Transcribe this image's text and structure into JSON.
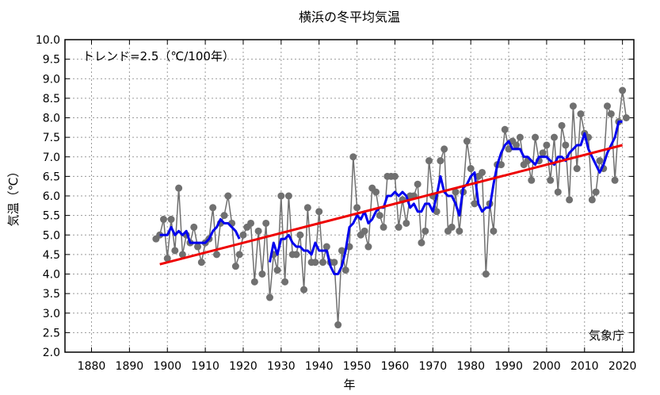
{
  "chart_data": {
    "type": "line",
    "title": "横浜の冬平均気温",
    "xlabel": "年",
    "ylabel": "気温（℃）",
    "xlim": [
      1873,
      2023
    ],
    "ylim": [
      2.0,
      10.0
    ],
    "xticks": [
      "1880",
      "1890",
      "1900",
      "1910",
      "1920",
      "1930",
      "1940",
      "1950",
      "1960",
      "1970",
      "1980",
      "1990",
      "2000",
      "2010",
      "2020"
    ],
    "yticks": [
      "2.0",
      "2.5",
      "3.0",
      "3.5",
      "4.0",
      "4.5",
      "5.0",
      "5.5",
      "6.0",
      "6.5",
      "7.0",
      "7.5",
      "8.0",
      "8.5",
      "9.0",
      "9.5",
      "10.0"
    ],
    "grid": true,
    "trend_text": "トレンド=2.5（℃/100年）",
    "source": "気象庁",
    "colors": {
      "annual": "#707070",
      "moving_average": "#0000ee",
      "trend": "#ee0000"
    },
    "series": [
      {
        "x": [
          1897,
          1898,
          1899,
          1900,
          1901,
          1902,
          1903,
          1904,
          1905,
          1906,
          1907,
          1908,
          1909,
          1910,
          1911,
          1912,
          1913,
          1914,
          1915,
          1916,
          1917,
          1918,
          1919,
          1920,
          1921,
          1922,
          1923,
          1924,
          1925,
          1926,
          1927,
          1928,
          1929,
          1930,
          1931,
          1932,
          1933,
          1934,
          1935,
          1936,
          1937,
          1938,
          1939,
          1940,
          1941,
          1942,
          1943,
          1944,
          1945,
          1946,
          1947,
          1948,
          1949,
          1950,
          1951,
          1952,
          1953,
          1954,
          1955,
          1956,
          1957,
          1958,
          1959,
          1960,
          1961,
          1962,
          1963,
          1964,
          1965,
          1966,
          1967,
          1968,
          1969,
          1970,
          1971,
          1972,
          1973,
          1974,
          1975,
          1976,
          1977,
          1978,
          1979,
          1980,
          1981,
          1982,
          1983,
          1984,
          1985,
          1986,
          1987,
          1988,
          1989,
          1990,
          1991,
          1992,
          1993,
          1994,
          1995,
          1996,
          1997,
          1998,
          1999,
          2000,
          2001,
          2002,
          2003,
          2004,
          2005,
          2006,
          2007,
          2008,
          2009,
          2010,
          2011,
          2012,
          2013,
          2014,
          2015,
          2016,
          2017,
          2018,
          2019,
          2020,
          2021
        ],
        "values": [
          4.9,
          5.0,
          5.4,
          4.4,
          5.4,
          4.6,
          6.2,
          4.5,
          5.0,
          4.8,
          5.2,
          4.7,
          4.3,
          4.8,
          4.9,
          5.7,
          4.5,
          5.3,
          5.5,
          6.0,
          5.3,
          4.2,
          4.5,
          5.0,
          5.2,
          5.3,
          3.8,
          5.1,
          4.0,
          5.3,
          3.4,
          4.5,
          4.1,
          6.0,
          3.8,
          6.0,
          4.5,
          4.5,
          5.0,
          3.6,
          5.7,
          4.3,
          4.3,
          5.6,
          4.3,
          4.7,
          4.3,
          4.3,
          2.7,
          4.6,
          4.1,
          4.7,
          7.0,
          5.7,
          5.0,
          5.1,
          4.7,
          6.2,
          6.1,
          5.5,
          5.2,
          6.5,
          6.5,
          6.5,
          5.2,
          5.9,
          5.3,
          6.0,
          6.0,
          6.3,
          4.8,
          5.1,
          6.9,
          6.0,
          5.6,
          6.9,
          7.2,
          5.1,
          5.2,
          6.1,
          5.1,
          6.1,
          7.4,
          6.7,
          5.8,
          6.5,
          6.6,
          4.0,
          5.8,
          5.1,
          6.8,
          6.8,
          7.7,
          7.2,
          7.4,
          7.3,
          7.5,
          6.8,
          6.9,
          6.4,
          7.5,
          6.9,
          7.1,
          7.3,
          6.4,
          7.5,
          6.1,
          7.8,
          7.3,
          5.9,
          8.3,
          6.7,
          8.1,
          7.6,
          7.5,
          5.9,
          6.1,
          6.9,
          6.7,
          8.3,
          8.1,
          6.4,
          7.9,
          8.7,
          8.0
        ]
      },
      {
        "x": [
          1898,
          1899,
          1900,
          1901,
          1902,
          1903,
          1904,
          1905,
          1906,
          1907,
          1908,
          1909,
          1910,
          1911,
          1912,
          1913,
          1914,
          1915,
          1916,
          1917,
          1918,
          1919,
          null,
          1927,
          1928,
          1929,
          1930,
          1931,
          1932,
          1933,
          1934,
          1935,
          1936,
          1937,
          1938,
          1939,
          1940,
          1941,
          1942,
          1943,
          1944,
          1945,
          1946,
          1947,
          1948,
          1949,
          1950,
          1951,
          1952,
          1953,
          1954,
          1955,
          1956,
          1957,
          1958,
          1959,
          1960,
          1961,
          1962,
          1963,
          1964,
          1965,
          1966,
          1967,
          1968,
          1969,
          1970,
          1971,
          1972,
          1973,
          1974,
          1975,
          1976,
          1977,
          1978,
          1979,
          1980,
          1981,
          1982,
          1983,
          1984,
          1985,
          1986,
          1987,
          1988,
          1989,
          1990,
          1991,
          1992,
          1993,
          1994,
          1995,
          1996,
          1997,
          1998,
          1999,
          2000,
          2001,
          2002,
          2003,
          2004,
          2005,
          2006,
          2007,
          2008,
          2009,
          2010,
          2011,
          2012,
          2013,
          2014,
          2015,
          2016,
          2017,
          2018,
          2019,
          2020
        ],
        "values": [
          5.0,
          5.0,
          5.0,
          5.2,
          5.0,
          5.1,
          5.0,
          5.1,
          4.8,
          4.8,
          4.8,
          4.8,
          4.8,
          4.9,
          5.1,
          5.2,
          5.4,
          5.3,
          5.3,
          5.2,
          5.1,
          4.9,
          null,
          4.3,
          4.8,
          4.5,
          4.9,
          4.9,
          5.0,
          4.8,
          4.7,
          4.7,
          4.6,
          4.6,
          4.5,
          4.8,
          4.6,
          4.6,
          4.6,
          4.2,
          4.0,
          4.0,
          4.2,
          4.6,
          5.2,
          5.3,
          5.5,
          5.4,
          5.6,
          5.3,
          5.4,
          5.6,
          5.7,
          5.7,
          6.0,
          6.0,
          6.1,
          6.0,
          6.1,
          6.0,
          5.7,
          5.8,
          5.6,
          5.6,
          5.8,
          5.8,
          5.6,
          6.0,
          6.5,
          6.1,
          6.0,
          6.0,
          5.8,
          5.5,
          6.2,
          6.3,
          6.5,
          6.6,
          5.8,
          5.6,
          5.7,
          5.7,
          6.3,
          6.8,
          7.1,
          7.3,
          7.4,
          7.2,
          7.2,
          7.2,
          7.0,
          7.0,
          6.9,
          6.8,
          7.0,
          7.0,
          7.0,
          6.9,
          6.8,
          7.0,
          7.0,
          6.9,
          7.1,
          7.2,
          7.3,
          7.3,
          7.6,
          7.2,
          7.0,
          6.8,
          6.6,
          6.8,
          7.1,
          7.3,
          7.5,
          7.9,
          7.9
        ]
      },
      {
        "x": [
          1898,
          2020
        ],
        "values": [
          4.25,
          7.3
        ]
      }
    ]
  }
}
